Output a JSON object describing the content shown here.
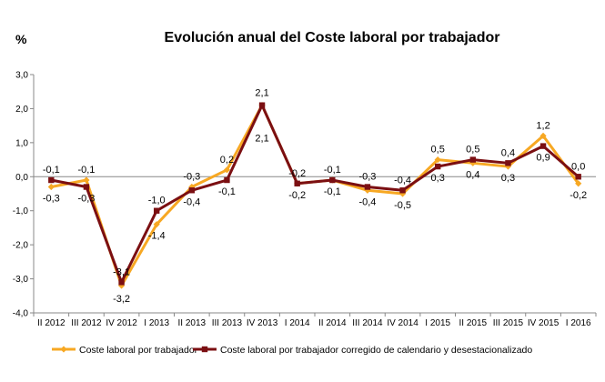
{
  "chart_data": {
    "type": "line",
    "title": "Evolución anual del Coste laboral por trabajador",
    "ylabel": "%",
    "xlabel": "",
    "ylim": [
      -4.0,
      3.0
    ],
    "yticks": [
      "3,0",
      "2,0",
      "1,0",
      "0,0",
      "-1,0",
      "-2,0",
      "-3,0",
      "-4,0"
    ],
    "categories": [
      "II 2012",
      "III 2012",
      "IV 2012",
      "I 2013",
      "II 2013",
      "III 2013",
      "IV 2013",
      "I 2014",
      "II 2014",
      "III 2014",
      "IV 2014",
      "I 2015",
      "II 2015",
      "III 2015",
      "IV 2015",
      "I 2016"
    ],
    "grid": "horizontal at 0,0 only",
    "legend_position": "bottom",
    "series": [
      {
        "name": "Coste laboral por trabajador",
        "color": "#F7A823",
        "values": [
          -0.3,
          -0.1,
          -3.2,
          -1.4,
          -0.3,
          0.2,
          2.1,
          -0.2,
          -0.1,
          -0.4,
          -0.5,
          0.5,
          0.4,
          0.3,
          1.2,
          -0.2
        ],
        "labels": [
          "-0,3",
          "-0,1",
          "-3,2",
          "-1,4",
          "-0,3",
          "0,2",
          "2,1",
          "-0,2",
          "-0,1",
          "-0,4",
          "-0,5",
          "0,5",
          "0,4",
          "0,3",
          "1,2",
          "-0,2"
        ]
      },
      {
        "name": "Coste laboral por trabajador corregido de calendario y desestacionalizado",
        "color": "#7B0F12",
        "values": [
          -0.1,
          -0.3,
          -3.1,
          -1.0,
          -0.4,
          -0.1,
          2.1,
          -0.2,
          -0.1,
          -0.3,
          -0.4,
          0.3,
          0.5,
          0.4,
          0.9,
          0.0
        ],
        "labels": [
          "-0,1",
          "-0,3",
          "-3,1",
          "-1,0",
          "-0,4",
          "-0,1",
          "2,1",
          "-0,2",
          "-0,1",
          "-0,3",
          "-0,4",
          "0,3",
          "0,5",
          "0,4",
          "0,9",
          "0,0"
        ]
      }
    ]
  }
}
